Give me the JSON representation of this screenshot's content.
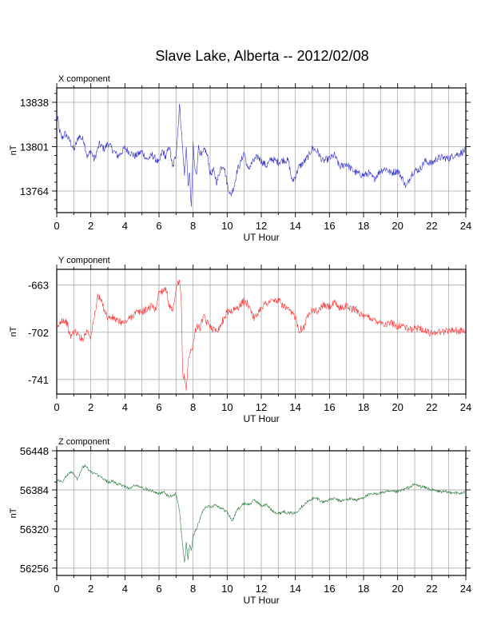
{
  "title": "Slave Lake, Alberta -- 2012/02/08",
  "chart_data": [
    {
      "type": "line",
      "panel_label": "X component",
      "xlabel": "UT Hour",
      "ylabel": "nT",
      "xlim": [
        0,
        24
      ],
      "ylim": [
        13746,
        13850
      ],
      "xticks": [
        0,
        2,
        4,
        6,
        8,
        10,
        12,
        14,
        16,
        18,
        20,
        22,
        24
      ],
      "yticks": [
        13764,
        13801,
        13838
      ],
      "grid": true,
      "color": "#3333cc",
      "x": [
        0,
        0.05,
        0.15,
        0.3,
        0.5,
        0.8,
        1,
        1.3,
        1.6,
        1.8,
        2,
        2.2,
        2.5,
        2.8,
        3,
        3.3,
        3.6,
        4,
        4.3,
        4.6,
        5,
        5.3,
        5.6,
        6,
        6.2,
        6.4,
        6.6,
        6.8,
        7,
        7.1,
        7.2,
        7.3,
        7.4,
        7.5,
        7.6,
        7.7,
        7.8,
        7.9,
        8,
        8.1,
        8.2,
        8.3,
        8.5,
        8.7,
        8.9,
        9,
        9.2,
        9.4,
        9.6,
        9.8,
        10,
        10.2,
        10.4,
        10.6,
        10.8,
        11,
        11.2,
        11.5,
        11.8,
        12,
        12.3,
        12.6,
        13,
        13.3,
        13.6,
        13.8,
        14,
        14.2,
        14.5,
        14.8,
        15,
        15.3,
        15.6,
        16,
        16.3,
        16.6,
        17,
        17.3,
        17.6,
        18,
        18.3,
        18.6,
        19,
        19.3,
        19.6,
        20,
        20.3,
        20.5,
        20.8,
        21,
        21.3,
        21.6,
        22,
        22.3,
        22.6,
        23,
        23.3,
        23.6,
        24
      ],
      "y": [
        13820,
        13826,
        13815,
        13808,
        13812,
        13805,
        13798,
        13810,
        13806,
        13792,
        13798,
        13790,
        13803,
        13799,
        13804,
        13798,
        13793,
        13800,
        13796,
        13793,
        13797,
        13790,
        13794,
        13787,
        13798,
        13792,
        13802,
        13783,
        13795,
        13812,
        13836,
        13818,
        13796,
        13776,
        13803,
        13768,
        13779,
        13748,
        13802,
        13783,
        13776,
        13801,
        13793,
        13799,
        13790,
        13778,
        13781,
        13771,
        13783,
        13786,
        13770,
        13760,
        13768,
        13782,
        13788,
        13797,
        13782,
        13788,
        13793,
        13789,
        13785,
        13791,
        13788,
        13790,
        13789,
        13772,
        13776,
        13784,
        13788,
        13794,
        13800,
        13797,
        13789,
        13791,
        13794,
        13784,
        13787,
        13782,
        13779,
        13777,
        13779,
        13774,
        13781,
        13783,
        13779,
        13781,
        13774,
        13767,
        13778,
        13781,
        13782,
        13789,
        13787,
        13791,
        13792,
        13791,
        13794,
        13795,
        13798
      ],
      "noise": 3
    },
    {
      "type": "line",
      "panel_label": "Y component",
      "xlabel": "UT Hour",
      "ylabel": "nT",
      "xlim": [
        0,
        24
      ],
      "ylim": [
        -753,
        -650
      ],
      "xticks": [
        0,
        2,
        4,
        6,
        8,
        10,
        12,
        14,
        16,
        18,
        20,
        22,
        24
      ],
      "yticks": [
        -663,
        -702,
        -741
      ],
      "grid": true,
      "color": "#ff3333",
      "x": [
        0,
        0.3,
        0.6,
        0.8,
        1,
        1.2,
        1.5,
        1.8,
        2,
        2.2,
        2.4,
        2.6,
        2.9,
        3,
        3.3,
        3.6,
        4,
        4.3,
        4.6,
        5,
        5.3,
        5.6,
        5.8,
        6,
        6.2,
        6.4,
        6.6,
        6.8,
        7,
        7.1,
        7.2,
        7.3,
        7.4,
        7.5,
        7.6,
        7.7,
        7.8,
        8,
        8.2,
        8.4,
        8.6,
        8.8,
        9,
        9.2,
        9.5,
        9.8,
        10,
        10.3,
        10.6,
        11,
        11.3,
        11.6,
        12,
        12.3,
        12.6,
        13,
        13.3,
        13.6,
        14,
        14.2,
        14.5,
        14.8,
        15,
        15.3,
        15.6,
        16,
        16.3,
        16.6,
        17,
        17.3,
        17.6,
        18,
        18.3,
        18.6,
        19,
        19.3,
        19.6,
        20,
        20.3,
        20.6,
        21,
        21.3,
        21.6,
        22,
        22.3,
        22.6,
        23,
        23.3,
        23.6,
        24
      ],
      "y": [
        -700,
        -691,
        -694,
        -706,
        -701,
        -703,
        -708,
        -700,
        -706,
        -690,
        -672,
        -676,
        -687,
        -690,
        -690,
        -693,
        -694,
        -690,
        -686,
        -685,
        -683,
        -680,
        -684,
        -668,
        -668,
        -665,
        -680,
        -686,
        -668,
        -662,
        -661,
        -672,
        -742,
        -738,
        -750,
        -728,
        -720,
        -712,
        -696,
        -699,
        -689,
        -694,
        -696,
        -700,
        -699,
        -691,
        -685,
        -684,
        -682,
        -676,
        -680,
        -691,
        -681,
        -678,
        -676,
        -676,
        -680,
        -684,
        -689,
        -700,
        -698,
        -685,
        -683,
        -685,
        -680,
        -681,
        -678,
        -682,
        -680,
        -683,
        -683,
        -690,
        -689,
        -692,
        -693,
        -696,
        -694,
        -697,
        -696,
        -700,
        -699,
        -698,
        -701,
        -703,
        -701,
        -702,
        -700,
        -700,
        -701,
        -701
      ],
      "noise": 3
    },
    {
      "type": "line",
      "panel_label": "Z component",
      "xlabel": "UT Hour",
      "ylabel": "nT",
      "xlim": [
        0,
        24
      ],
      "ylim": [
        56244,
        56448
      ],
      "xticks": [
        0,
        2,
        4,
        6,
        8,
        10,
        12,
        14,
        16,
        18,
        20,
        22,
        24
      ],
      "yticks": [
        56256,
        56320,
        56384,
        56448
      ],
      "grid": true,
      "color": "#2e7d3e",
      "x": [
        0,
        0.3,
        0.6,
        0.9,
        1.2,
        1.5,
        1.7,
        1.9,
        2.1,
        2.3,
        2.6,
        3,
        3.3,
        3.6,
        4,
        4.3,
        4.6,
        5,
        5.3,
        5.6,
        6,
        6.3,
        6.6,
        7,
        7.2,
        7.35,
        7.5,
        7.6,
        7.7,
        7.8,
        7.9,
        8,
        8.2,
        8.4,
        8.6,
        8.8,
        9,
        9.3,
        9.6,
        10,
        10.3,
        10.6,
        11,
        11.3,
        11.6,
        12,
        12.3,
        12.6,
        13,
        13.3,
        13.6,
        14,
        14.3,
        14.6,
        15,
        15.3,
        15.6,
        16,
        16.3,
        16.6,
        17,
        17.3,
        17.6,
        18,
        18.3,
        18.6,
        19,
        19.3,
        19.6,
        20,
        20.3,
        20.6,
        21,
        21.3,
        21.6,
        22,
        22.3,
        22.6,
        23,
        23.3,
        23.6,
        24
      ],
      "y": [
        56402,
        56396,
        56408,
        56414,
        56402,
        56420,
        56425,
        56415,
        56412,
        56410,
        56404,
        56397,
        56398,
        56393,
        56390,
        56386,
        56392,
        56387,
        56385,
        56383,
        56378,
        56380,
        56372,
        56378,
        56350,
        56303,
        56262,
        56298,
        56270,
        56296,
        56282,
        56310,
        56320,
        56336,
        56352,
        56358,
        56356,
        56360,
        56355,
        56348,
        56333,
        56352,
        56362,
        56360,
        56368,
        56358,
        56360,
        56351,
        56345,
        56349,
        56346,
        56346,
        56355,
        56362,
        56370,
        56370,
        56364,
        56368,
        56370,
        56366,
        56368,
        56370,
        56367,
        56372,
        56376,
        56377,
        56379,
        56381,
        56381,
        56381,
        56384,
        56387,
        56393,
        56390,
        56388,
        56384,
        56382,
        56381,
        56380,
        56380,
        56378,
        56380
      ],
      "noise": 2.5
    }
  ]
}
